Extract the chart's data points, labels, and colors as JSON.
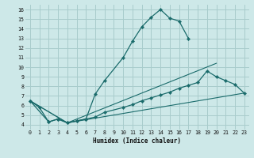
{
  "xlabel": "Humidex (Indice chaleur)",
  "xlim": [
    -0.5,
    23.5
  ],
  "ylim": [
    3.5,
    16.5
  ],
  "xticks": [
    0,
    1,
    2,
    3,
    4,
    5,
    6,
    7,
    8,
    9,
    10,
    11,
    12,
    13,
    14,
    15,
    16,
    17,
    18,
    19,
    20,
    21,
    22,
    23
  ],
  "yticks": [
    4,
    5,
    6,
    7,
    8,
    9,
    10,
    11,
    12,
    13,
    14,
    15,
    16
  ],
  "background_color": "#cde8e8",
  "grid_color": "#a8cccc",
  "line_color": "#1a6b6b",
  "line1_x": [
    0,
    1,
    2,
    3,
    4,
    5,
    6,
    7,
    8,
    10,
    11,
    12,
    13,
    14,
    15,
    16,
    17
  ],
  "line1_y": [
    6.5,
    5.8,
    4.3,
    4.6,
    4.2,
    4.4,
    4.6,
    7.2,
    8.6,
    11.0,
    12.7,
    14.2,
    15.2,
    16.0,
    15.1,
    14.8,
    13.0
  ],
  "line2_x": [
    0,
    2,
    3,
    4,
    5,
    6,
    7,
    8,
    10,
    11,
    12,
    13,
    14,
    15,
    16,
    17,
    18,
    19,
    20,
    21,
    22,
    23
  ],
  "line2_y": [
    6.5,
    4.3,
    4.6,
    4.2,
    4.4,
    4.6,
    4.8,
    5.3,
    5.8,
    6.1,
    6.5,
    6.8,
    7.1,
    7.4,
    7.8,
    8.1,
    8.4,
    9.6,
    9.0,
    8.6,
    8.2,
    7.3
  ],
  "line3_x": [
    0,
    4,
    23
  ],
  "line3_y": [
    6.5,
    4.2,
    7.3
  ],
  "line4_x": [
    0,
    4,
    20
  ],
  "line4_y": [
    6.5,
    4.2,
    10.4
  ]
}
